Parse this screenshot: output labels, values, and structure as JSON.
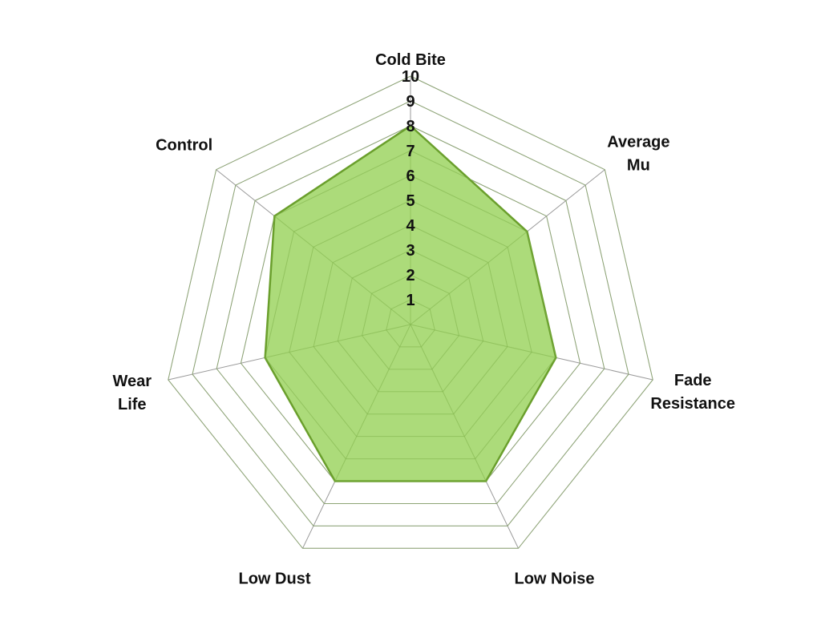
{
  "chart_data": {
    "type": "radar",
    "categories": [
      "Cold Bite",
      "Average Mu",
      "Fade Resistance",
      "Low Noise",
      "Low Dust",
      "Wear Life",
      "Control"
    ],
    "category_lines": [
      [
        "Cold Bite"
      ],
      [
        "Average",
        "Mu"
      ],
      [
        "Fade",
        "Resistance"
      ],
      [
        "Low Noise"
      ],
      [
        "Low Dust"
      ],
      [
        "Wear",
        "Life"
      ],
      [
        "Control"
      ]
    ],
    "values": [
      8,
      6,
      6,
      7,
      7,
      6,
      7
    ],
    "rlim": [
      0,
      10
    ],
    "ticks": [
      "1",
      "2",
      "3",
      "4",
      "5",
      "6",
      "7",
      "8",
      "9",
      "10"
    ],
    "grid": true,
    "legend": "none",
    "colors": {
      "fill": "#a5d86f",
      "stroke": "#6a9f2c",
      "grid": "#9a9a9a"
    }
  }
}
